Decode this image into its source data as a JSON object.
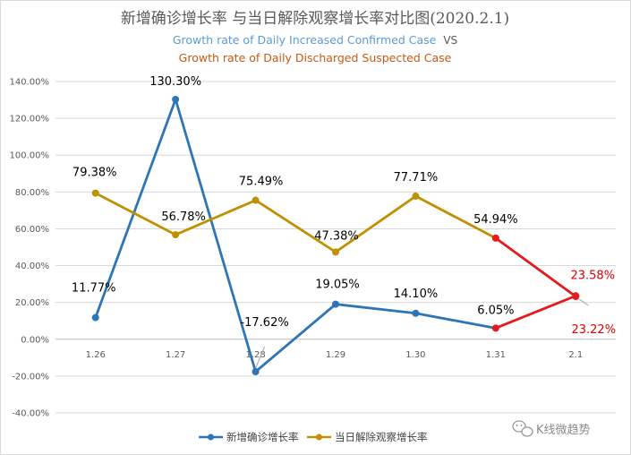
{
  "chart_data": {
    "type": "line",
    "title": "新增确诊增长率 与当日解除观察增长率对比图(2020.2.1)",
    "subtitle_blue": "Growth rate of Daily Increased Confirmed Case",
    "subtitle_vs": "VS",
    "subtitle_orange": "Growth rate of Daily Discharged Suspected Case",
    "categories": [
      "1.26",
      "1.27",
      "1.28",
      "1.29",
      "1.30",
      "1.31",
      "2.1"
    ],
    "ylim": [
      -40,
      140
    ],
    "ytick_step": 20,
    "ytick_labels": [
      "140.00%",
      "120.00%",
      "100.00%",
      "80.00%",
      "60.00%",
      "40.00%",
      "20.00%",
      "0.00%",
      "-20.00%",
      "-40.00%"
    ],
    "grid": true,
    "highlight_color": "#e41a1c",
    "series": [
      {
        "name": "新增确诊增长率",
        "color": "#2e75b6",
        "values": [
          11.77,
          130.3,
          -17.62,
          19.05,
          14.1,
          6.05,
          23.58
        ],
        "labels": [
          "11.77%",
          "130.30%",
          "-17.62%",
          "19.05%",
          "14.10%",
          "6.05%",
          "23.58%"
        ]
      },
      {
        "name": "当日解除观察增长率",
        "color": "#bf9000",
        "values": [
          79.38,
          56.78,
          75.49,
          47.38,
          77.71,
          54.94,
          23.22
        ],
        "labels": [
          "79.38%",
          "56.78%",
          "75.49%",
          "47.38%",
          "77.71%",
          "54.94%",
          "23.22%"
        ]
      }
    ],
    "legend_position": "bottom"
  },
  "watermark": {
    "icon": "wechat-icon",
    "text": "K线微趋势"
  }
}
